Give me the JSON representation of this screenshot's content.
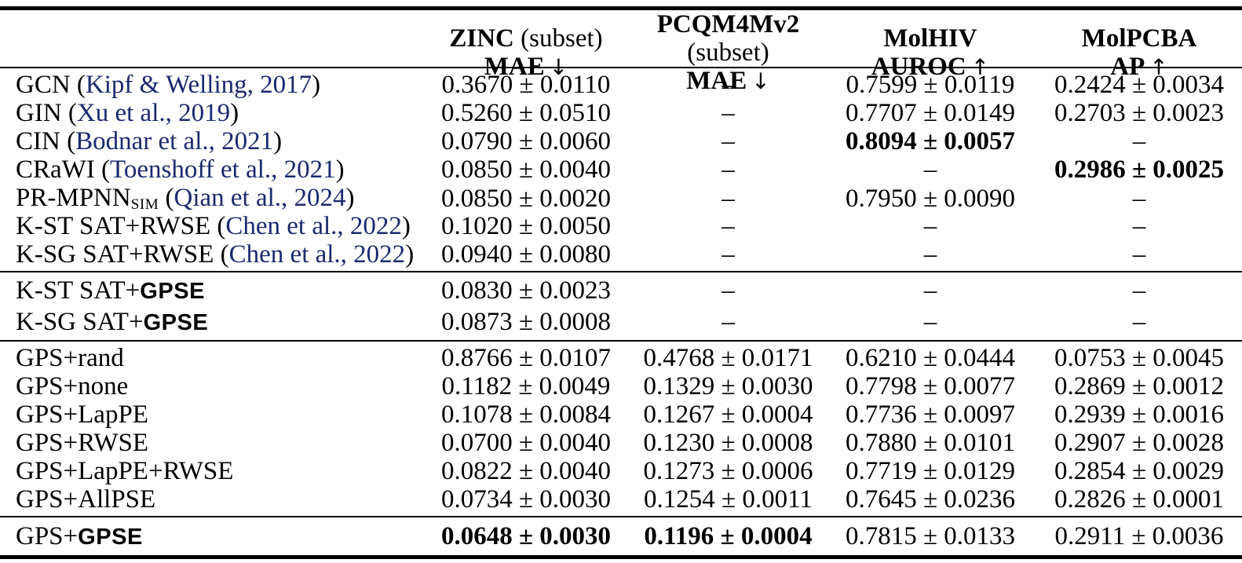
{
  "page": {
    "background": "#ffffff",
    "text_color": "#000000",
    "cite_color": "#1a296e"
  },
  "header": {
    "columns": [
      {
        "dataset": "ZINC",
        "note": " (subset)",
        "metric": "MAE",
        "arrow": "↓"
      },
      {
        "dataset": "PCQM4Mv2",
        "note": " (subset)",
        "metric": "MAE",
        "arrow": "↓"
      },
      {
        "dataset": "MolHIV",
        "note": "",
        "metric": "AUROC",
        "arrow": "↑"
      },
      {
        "dataset": "MolPCBA",
        "note": "",
        "metric": "AP",
        "arrow": "↑"
      }
    ]
  },
  "groups": [
    {
      "rows": [
        {
          "model": [
            {
              "t": "GCN ("
            },
            {
              "t": "Kipf & Welling, 2017",
              "s": "cite"
            },
            {
              "t": ")"
            }
          ],
          "values": [
            {
              "v": "0.3670 ± 0.0110"
            },
            {
              "v": "–"
            },
            {
              "v": "0.7599 ± 0.0119"
            },
            {
              "v": "0.2424 ± 0.0034"
            }
          ]
        },
        {
          "model": [
            {
              "t": "GIN ("
            },
            {
              "t": "Xu et al., 2019",
              "s": "cite"
            },
            {
              "t": ")"
            }
          ],
          "values": [
            {
              "v": "0.5260 ± 0.0510"
            },
            {
              "v": "–"
            },
            {
              "v": "0.7707 ± 0.0149"
            },
            {
              "v": "0.2703 ± 0.0023"
            }
          ]
        },
        {
          "model": [
            {
              "t": "CIN ("
            },
            {
              "t": "Bodnar et al., 2021",
              "s": "cite"
            },
            {
              "t": ")"
            }
          ],
          "values": [
            {
              "v": "0.0790 ± 0.0060"
            },
            {
              "v": "–"
            },
            {
              "v": "0.8094 ± 0.0057",
              "b": true
            },
            {
              "v": "–"
            }
          ]
        },
        {
          "model": [
            {
              "t": "CRaWI ("
            },
            {
              "t": "Toenshoff et al., 2021",
              "s": "cite"
            },
            {
              "t": ")"
            }
          ],
          "values": [
            {
              "v": "0.0850 ± 0.0040"
            },
            {
              "v": "–"
            },
            {
              "v": "–"
            },
            {
              "v": "0.2986 ± 0.0025",
              "b": true
            }
          ]
        },
        {
          "model": [
            {
              "t": "PR-MPNN"
            },
            {
              "t": "SIM",
              "s": "sub"
            },
            {
              "t": " ("
            },
            {
              "t": "Qian et al., 2024",
              "s": "cite"
            },
            {
              "t": ")"
            }
          ],
          "values": [
            {
              "v": "0.0850 ± 0.0020"
            },
            {
              "v": "–"
            },
            {
              "v": "0.7950 ± 0.0090"
            },
            {
              "v": "–"
            }
          ]
        },
        {
          "model": [
            {
              "t": "K-ST SAT+RWSE ("
            },
            {
              "t": "Chen et al., 2022",
              "s": "cite"
            },
            {
              "t": ")"
            }
          ],
          "values": [
            {
              "v": "0.1020 ± 0.0050"
            },
            {
              "v": "–"
            },
            {
              "v": "–"
            },
            {
              "v": "–"
            }
          ]
        },
        {
          "model": [
            {
              "t": "K-SG SAT+RWSE ("
            },
            {
              "t": "Chen et al., 2022",
              "s": "cite"
            },
            {
              "t": ")"
            }
          ],
          "values": [
            {
              "v": "0.0940 ± 0.0080"
            },
            {
              "v": "–"
            },
            {
              "v": "–"
            },
            {
              "v": "–"
            }
          ]
        }
      ]
    },
    {
      "rows": [
        {
          "model": [
            {
              "t": "K-ST SAT+"
            },
            {
              "t": "GPSE",
              "s": "gpse"
            }
          ],
          "values": [
            {
              "v": "0.0830 ± 0.0023"
            },
            {
              "v": "–"
            },
            {
              "v": "–"
            },
            {
              "v": "–"
            }
          ]
        },
        {
          "model": [
            {
              "t": "K-SG SAT+"
            },
            {
              "t": "GPSE",
              "s": "gpse"
            }
          ],
          "values": [
            {
              "v": "0.0873 ± 0.0008"
            },
            {
              "v": "–"
            },
            {
              "v": "–"
            },
            {
              "v": "–"
            }
          ]
        }
      ]
    },
    {
      "rows": [
        {
          "model": [
            {
              "t": "GPS+rand"
            }
          ],
          "values": [
            {
              "v": "0.8766 ± 0.0107"
            },
            {
              "v": "0.4768 ± 0.0171"
            },
            {
              "v": "0.6210 ± 0.0444"
            },
            {
              "v": "0.0753 ± 0.0045"
            }
          ]
        },
        {
          "model": [
            {
              "t": "GPS+none"
            }
          ],
          "values": [
            {
              "v": "0.1182 ± 0.0049"
            },
            {
              "v": "0.1329 ± 0.0030"
            },
            {
              "v": "0.7798 ± 0.0077"
            },
            {
              "v": "0.2869 ± 0.0012"
            }
          ]
        },
        {
          "model": [
            {
              "t": "GPS+LapPE"
            }
          ],
          "values": [
            {
              "v": "0.1078 ± 0.0084"
            },
            {
              "v": "0.1267 ± 0.0004"
            },
            {
              "v": "0.7736 ± 0.0097"
            },
            {
              "v": "0.2939 ± 0.0016"
            }
          ]
        },
        {
          "model": [
            {
              "t": "GPS+RWSE"
            }
          ],
          "values": [
            {
              "v": "0.0700 ± 0.0040"
            },
            {
              "v": "0.1230 ± 0.0008"
            },
            {
              "v": "0.7880 ± 0.0101"
            },
            {
              "v": "0.2907 ± 0.0028"
            }
          ]
        },
        {
          "model": [
            {
              "t": "GPS+LapPE+RWSE"
            }
          ],
          "values": [
            {
              "v": "0.0822 ± 0.0040"
            },
            {
              "v": "0.1273 ± 0.0006"
            },
            {
              "v": "0.7719 ± 0.0129"
            },
            {
              "v": "0.2854 ± 0.0029"
            }
          ]
        },
        {
          "model": [
            {
              "t": "GPS+AllPSE"
            }
          ],
          "values": [
            {
              "v": "0.0734 ± 0.0030"
            },
            {
              "v": "0.1254 ± 0.0011"
            },
            {
              "v": "0.7645 ± 0.0236"
            },
            {
              "v": "0.2826 ± 0.0001"
            }
          ]
        }
      ]
    },
    {
      "rows": [
        {
          "model": [
            {
              "t": "GPS+"
            },
            {
              "t": "GPSE",
              "s": "gpse"
            }
          ],
          "values": [
            {
              "v": "0.0648 ± 0.0030",
              "b": true
            },
            {
              "v": "0.1196 ± 0.0004",
              "b": true
            },
            {
              "v": "0.7815 ± 0.0133"
            },
            {
              "v": "0.2911 ± 0.0036"
            }
          ]
        }
      ]
    }
  ]
}
